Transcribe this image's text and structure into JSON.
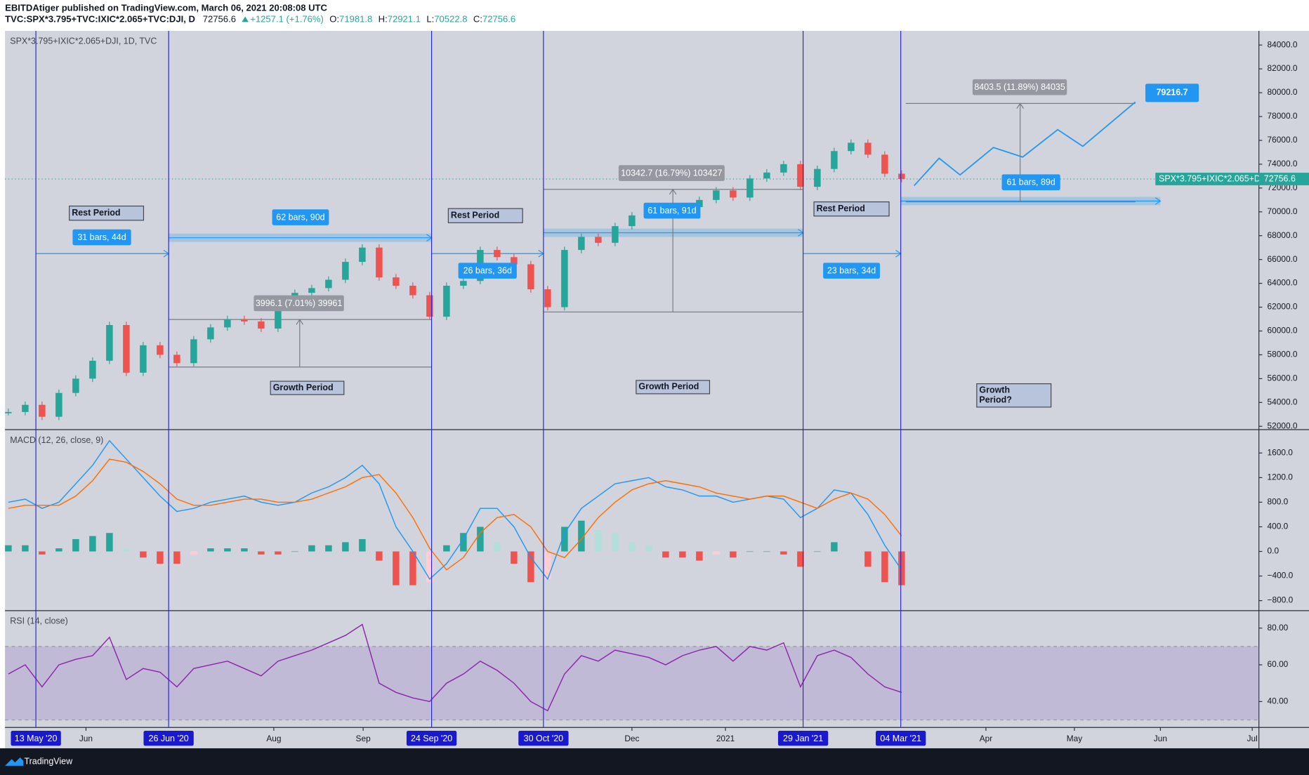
{
  "header": {
    "publisher": "EBITDAtiger published on TradingView.com, March 06, 2021 20:08:08 UTC",
    "symbol": "TVC:SPX*3.795+TVC:IXIC*2.065+TVC:DJI, D",
    "close": 72756.6,
    "change": "+1257.1 (+1.76%)",
    "ohlc": [
      {
        "label": "O:",
        "value": 71981.8
      },
      {
        "label": "H:",
        "value": 72921.1
      },
      {
        "label": "L:",
        "value": 70522.8
      },
      {
        "label": "C:",
        "value": 72756.6
      }
    ]
  },
  "chart_data": [
    {
      "type": "candlestick",
      "legend": "SPX*3.795+IXIC*2.065+DJI, 1D, TVC",
      "series_name": "SPX*3.795+IXIC*2.065+DJI",
      "up_color": "#26a69a",
      "down_color": "#ef5350",
      "closes": [
        53200,
        53800,
        52800,
        54800,
        56000,
        57500,
        60500,
        56500,
        58800,
        58000,
        57300,
        59300,
        60300,
        61000,
        60800,
        60200,
        62100,
        63200,
        63600,
        64300,
        65800,
        67000,
        64500,
        63800,
        63000,
        61200,
        63800,
        64200,
        66800,
        66200,
        65600,
        63500,
        62000,
        66800,
        67900,
        67400,
        68800,
        69700,
        70000,
        69800,
        70400,
        71000,
        71800,
        71200,
        72800,
        73300,
        74000,
        72100,
        73600,
        75100,
        75800,
        74800,
        73200,
        72756.6
      ],
      "forecast": [
        72200,
        74500,
        73100,
        75400,
        74600,
        76900,
        75500,
        79216.7
      ],
      "forecast_color": "#2196f3",
      "ylim": [
        51720,
        85190
      ],
      "yticks": [
        {
          "value": 52000,
          "label": "52000.0"
        },
        {
          "value": 54000,
          "label": "54000.0"
        },
        {
          "value": 56000,
          "label": "56000.0"
        },
        {
          "value": 58000,
          "label": "58000.0"
        },
        {
          "value": 60000,
          "label": "60000.0"
        },
        {
          "value": 62000,
          "label": "62000.0"
        },
        {
          "value": 64000,
          "label": "64000.0"
        },
        {
          "value": 66000,
          "label": "66000.0"
        },
        {
          "value": 68000,
          "label": "68000.0"
        },
        {
          "value": 70000,
          "label": "70000.0"
        },
        {
          "value": 72000,
          "label": "72000.0"
        },
        {
          "value": 74000,
          "label": "74000.0"
        },
        {
          "value": 76000,
          "label": "76000.0"
        },
        {
          "value": 78000,
          "label": "78000.0"
        },
        {
          "value": 80000,
          "label": "80000.0"
        },
        {
          "value": 82000,
          "label": "82000.0"
        },
        {
          "value": 84000,
          "label": "84000.0"
        }
      ],
      "annotations": {
        "periods": [
          "Rest Period",
          "Rest Period",
          "Rest Period",
          "Growth Period",
          "Growth Period",
          [
            "Growth",
            "Period?"
          ]
        ],
        "durations": [
          "31 bars, 44d",
          "62 bars, 90d",
          "26 bars, 36d",
          "61 bars, 91d",
          "23 bars, 34d",
          "61 bars, 89d"
        ],
        "measures": [
          "3996.1 (7.01%) 39961",
          "10342.7 (16.79%) 103427",
          "8403.5 (11.89%) 84035"
        ]
      }
    },
    {
      "type": "macd",
      "legend": "MACD (12, 26, close, 9)",
      "series": [
        {
          "name": "MACD",
          "color": "#2196f3",
          "values": [
            800,
            850,
            700,
            800,
            1100,
            1400,
            1800,
            1500,
            1200,
            900,
            650,
            700,
            800,
            850,
            900,
            800,
            750,
            800,
            950,
            1050,
            1200,
            1400,
            1100,
            400,
            0,
            -450,
            -200,
            200,
            700,
            700,
            400,
            -100,
            -450,
            300,
            700,
            900,
            1100,
            1150,
            1200,
            1050,
            1000,
            900,
            900,
            800,
            850,
            900,
            850,
            550,
            700,
            1000,
            950,
            600,
            100,
            -300
          ]
        },
        {
          "name": "Signal",
          "color": "#ff6d00",
          "values": [
            700,
            750,
            750,
            750,
            900,
            1150,
            1500,
            1450,
            1300,
            1100,
            850,
            750,
            750,
            800,
            850,
            850,
            800,
            800,
            850,
            950,
            1050,
            1200,
            1250,
            950,
            550,
            50,
            -300,
            -100,
            300,
            550,
            600,
            400,
            0,
            -100,
            200,
            550,
            800,
            1000,
            1100,
            1150,
            1100,
            1050,
            950,
            900,
            850,
            900,
            900,
            800,
            700,
            850,
            950,
            850,
            600,
            250
          ]
        }
      ],
      "histogram": [
        100,
        100,
        -50,
        50,
        200,
        250,
        300,
        50,
        -100,
        -200,
        -200,
        -50,
        50,
        50,
        50,
        -50,
        -50,
        0,
        100,
        100,
        150,
        200,
        -150,
        -550,
        -550,
        -500,
        100,
        300,
        400,
        150,
        -200,
        -500,
        -450,
        400,
        500,
        350,
        300,
        150,
        100,
        -100,
        -100,
        -150,
        -50,
        -100,
        0,
        0,
        -50,
        -250,
        0,
        150,
        0,
        -250,
        -500,
        -550
      ],
      "hist_colors": [
        "#26a69a",
        "#b2dfdb",
        "#ffcdd2",
        "#ef5350"
      ],
      "ylim": [
        -963,
        1980
      ],
      "yticks": [
        {
          "value": -800,
          "label": "−800.0"
        },
        {
          "value": -400,
          "label": "−400.0"
        },
        {
          "value": 0,
          "label": "0.0"
        },
        {
          "value": 400,
          "label": "400.0"
        },
        {
          "value": 800,
          "label": "800.0"
        },
        {
          "value": 1200,
          "label": "1200.0"
        },
        {
          "value": 1600,
          "label": "1600.0"
        }
      ]
    },
    {
      "type": "rsi",
      "legend": "RSI (14, close)",
      "color": "#8e24aa",
      "bands": [
        30,
        70
      ],
      "values": [
        55,
        60,
        48,
        60,
        63,
        65,
        75,
        52,
        58,
        56,
        48,
        58,
        60,
        62,
        58,
        54,
        62,
        65,
        68,
        72,
        76,
        82,
        50,
        45,
        42,
        40,
        50,
        55,
        62,
        57,
        50,
        40,
        35,
        55,
        65,
        62,
        68,
        66,
        64,
        60,
        65,
        68,
        70,
        62,
        70,
        68,
        72,
        48,
        65,
        68,
        64,
        55,
        48,
        45
      ],
      "ylim": [
        25.9,
        89.5
      ],
      "yticks": [
        {
          "value": 40,
          "label": "40.00"
        },
        {
          "value": 60,
          "label": "60.00"
        },
        {
          "value": 80,
          "label": "80.00"
        }
      ]
    }
  ],
  "time_axis": {
    "markers": [
      "13 May '20",
      "26 Jun '20",
      "24 Sep '20",
      "30 Oct '20",
      "29 Jan '21",
      "04 Mar '21"
    ],
    "labels": [
      "Jun",
      "Aug",
      "Sep",
      "Dec",
      "2021",
      "Apr",
      "May",
      "Jun",
      "Jul"
    ]
  },
  "footer": {
    "brand": "TradingView"
  }
}
